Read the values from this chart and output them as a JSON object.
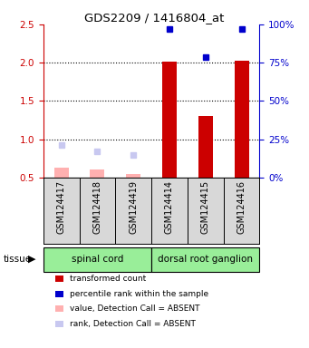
{
  "title": "GDS2209 / 1416804_at",
  "samples": [
    "GSM124417",
    "GSM124418",
    "GSM124419",
    "GSM124414",
    "GSM124415",
    "GSM124416"
  ],
  "tissue_groups": [
    {
      "label": "spinal cord",
      "start": 0,
      "end": 3
    },
    {
      "label": "dorsal root ganglion",
      "start": 3,
      "end": 6
    }
  ],
  "red_bars": [
    null,
    null,
    null,
    2.01,
    1.3,
    2.02
  ],
  "blue_squares": [
    null,
    null,
    null,
    2.44,
    2.07,
    2.44
  ],
  "pink_bars": [
    0.63,
    0.6,
    0.54,
    null,
    null,
    null
  ],
  "lavender_squares": [
    0.92,
    0.84,
    0.79,
    null,
    null,
    null
  ],
  "ylim": [
    0.5,
    2.5
  ],
  "yticks_left": [
    0.5,
    1.0,
    1.5,
    2.0,
    2.5
  ],
  "yticks_right": [
    0,
    25,
    50,
    75,
    100
  ],
  "left_color": "#cc0000",
  "right_color": "#0000cc",
  "tissue_color": "#99ee99",
  "bar_width": 0.4,
  "grid_lines": [
    1.0,
    1.5,
    2.0
  ],
  "legend_items": [
    {
      "color": "#cc0000",
      "label": "transformed count"
    },
    {
      "color": "#0000cc",
      "label": "percentile rank within the sample"
    },
    {
      "color": "#ffb0b0",
      "label": "value, Detection Call = ABSENT"
    },
    {
      "color": "#c8c8f0",
      "label": "rank, Detection Call = ABSENT"
    }
  ]
}
